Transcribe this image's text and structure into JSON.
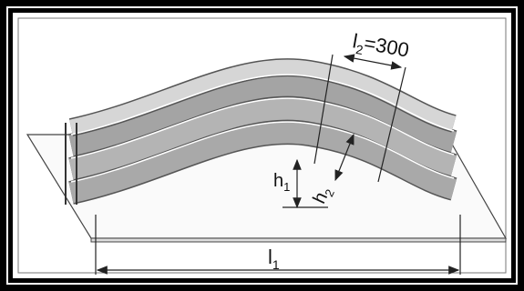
{
  "labels": {
    "l2": {
      "base": "l",
      "sub": "2",
      "rest": "=300"
    },
    "h1": {
      "base": "h",
      "sub": "1"
    },
    "h2": {
      "base": "h",
      "sub": "2"
    },
    "l1": {
      "base": "l",
      "sub": "1"
    }
  }
}
